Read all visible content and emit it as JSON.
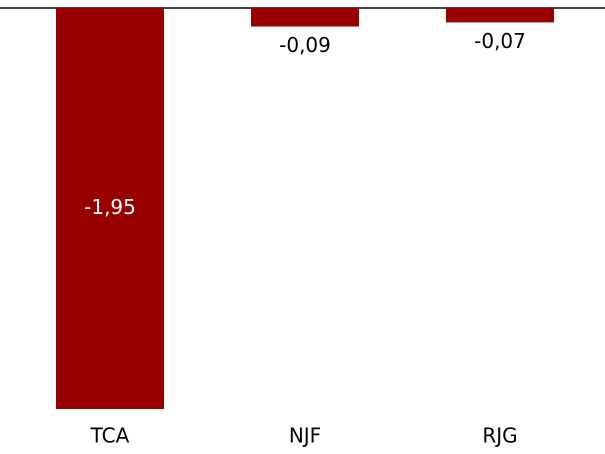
{
  "chart_data": {
    "type": "bar",
    "categories": [
      "TCA",
      "NJF",
      "RJG"
    ],
    "values": [
      -1.95,
      -0.09,
      -0.07
    ],
    "value_labels": [
      "-1,95",
      "-0,09",
      "-0,07"
    ],
    "color": "#990000"
  }
}
